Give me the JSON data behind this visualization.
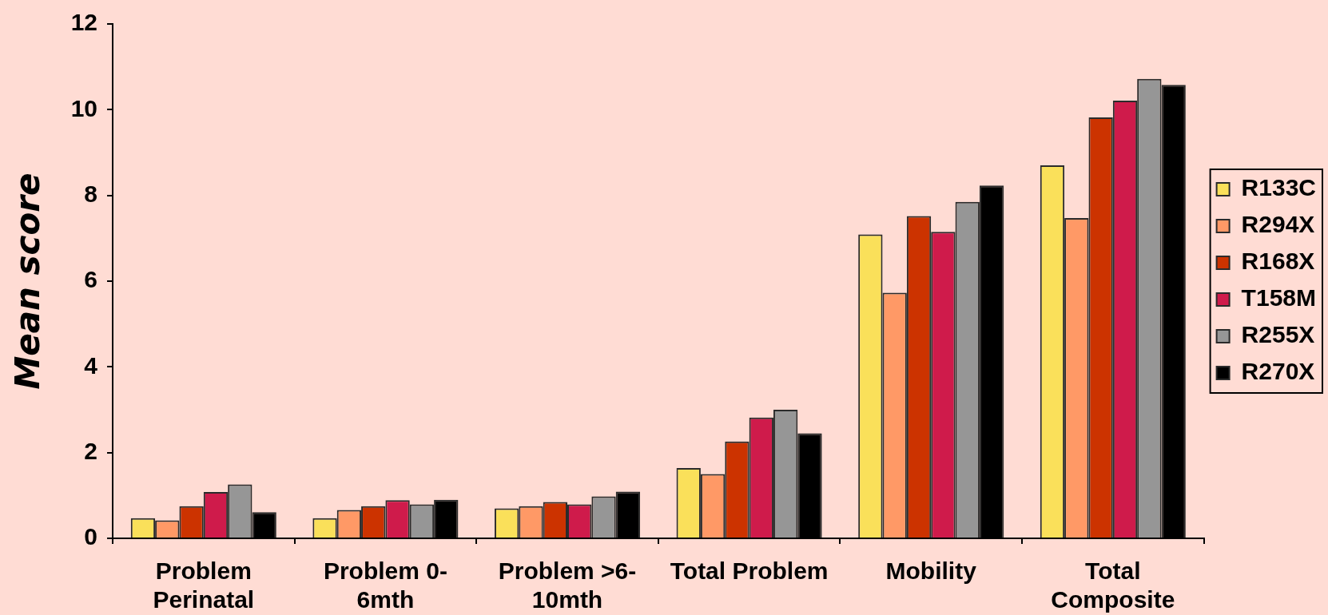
{
  "chart_data": {
    "type": "bar",
    "ylabel": "Mean score",
    "categories": [
      "Problem Perinatal",
      "Problem 0-6mth",
      "Problem >6-10mth",
      "Total Problem",
      "Mobility",
      "Total Composite"
    ],
    "series": [
      {
        "name": "R133C",
        "color": "#fae05a",
        "values": [
          0.47,
          0.47,
          0.7,
          1.64,
          7.09,
          8.7
        ]
      },
      {
        "name": "R294X",
        "color": "#ff9966",
        "values": [
          0.42,
          0.66,
          0.75,
          1.5,
          5.73,
          7.47
        ]
      },
      {
        "name": "R168X",
        "color": "#cc3300",
        "values": [
          0.75,
          0.75,
          0.85,
          2.26,
          7.52,
          9.82
        ]
      },
      {
        "name": "T158M",
        "color": "#cf1b4b",
        "values": [
          1.08,
          0.89,
          0.79,
          2.82,
          7.15,
          10.21
        ]
      },
      {
        "name": "R255X",
        "color": "#969696",
        "values": [
          1.26,
          0.79,
          0.98,
          3.0,
          7.85,
          10.72
        ]
      },
      {
        "name": "R270X",
        "color": "#000000",
        "values": [
          0.61,
          0.9,
          1.09,
          2.45,
          8.23,
          10.58
        ]
      }
    ],
    "ylim": [
      0,
      12
    ],
    "yticks": [
      0,
      2,
      4,
      6,
      8,
      10,
      12
    ],
    "legend": "right"
  }
}
